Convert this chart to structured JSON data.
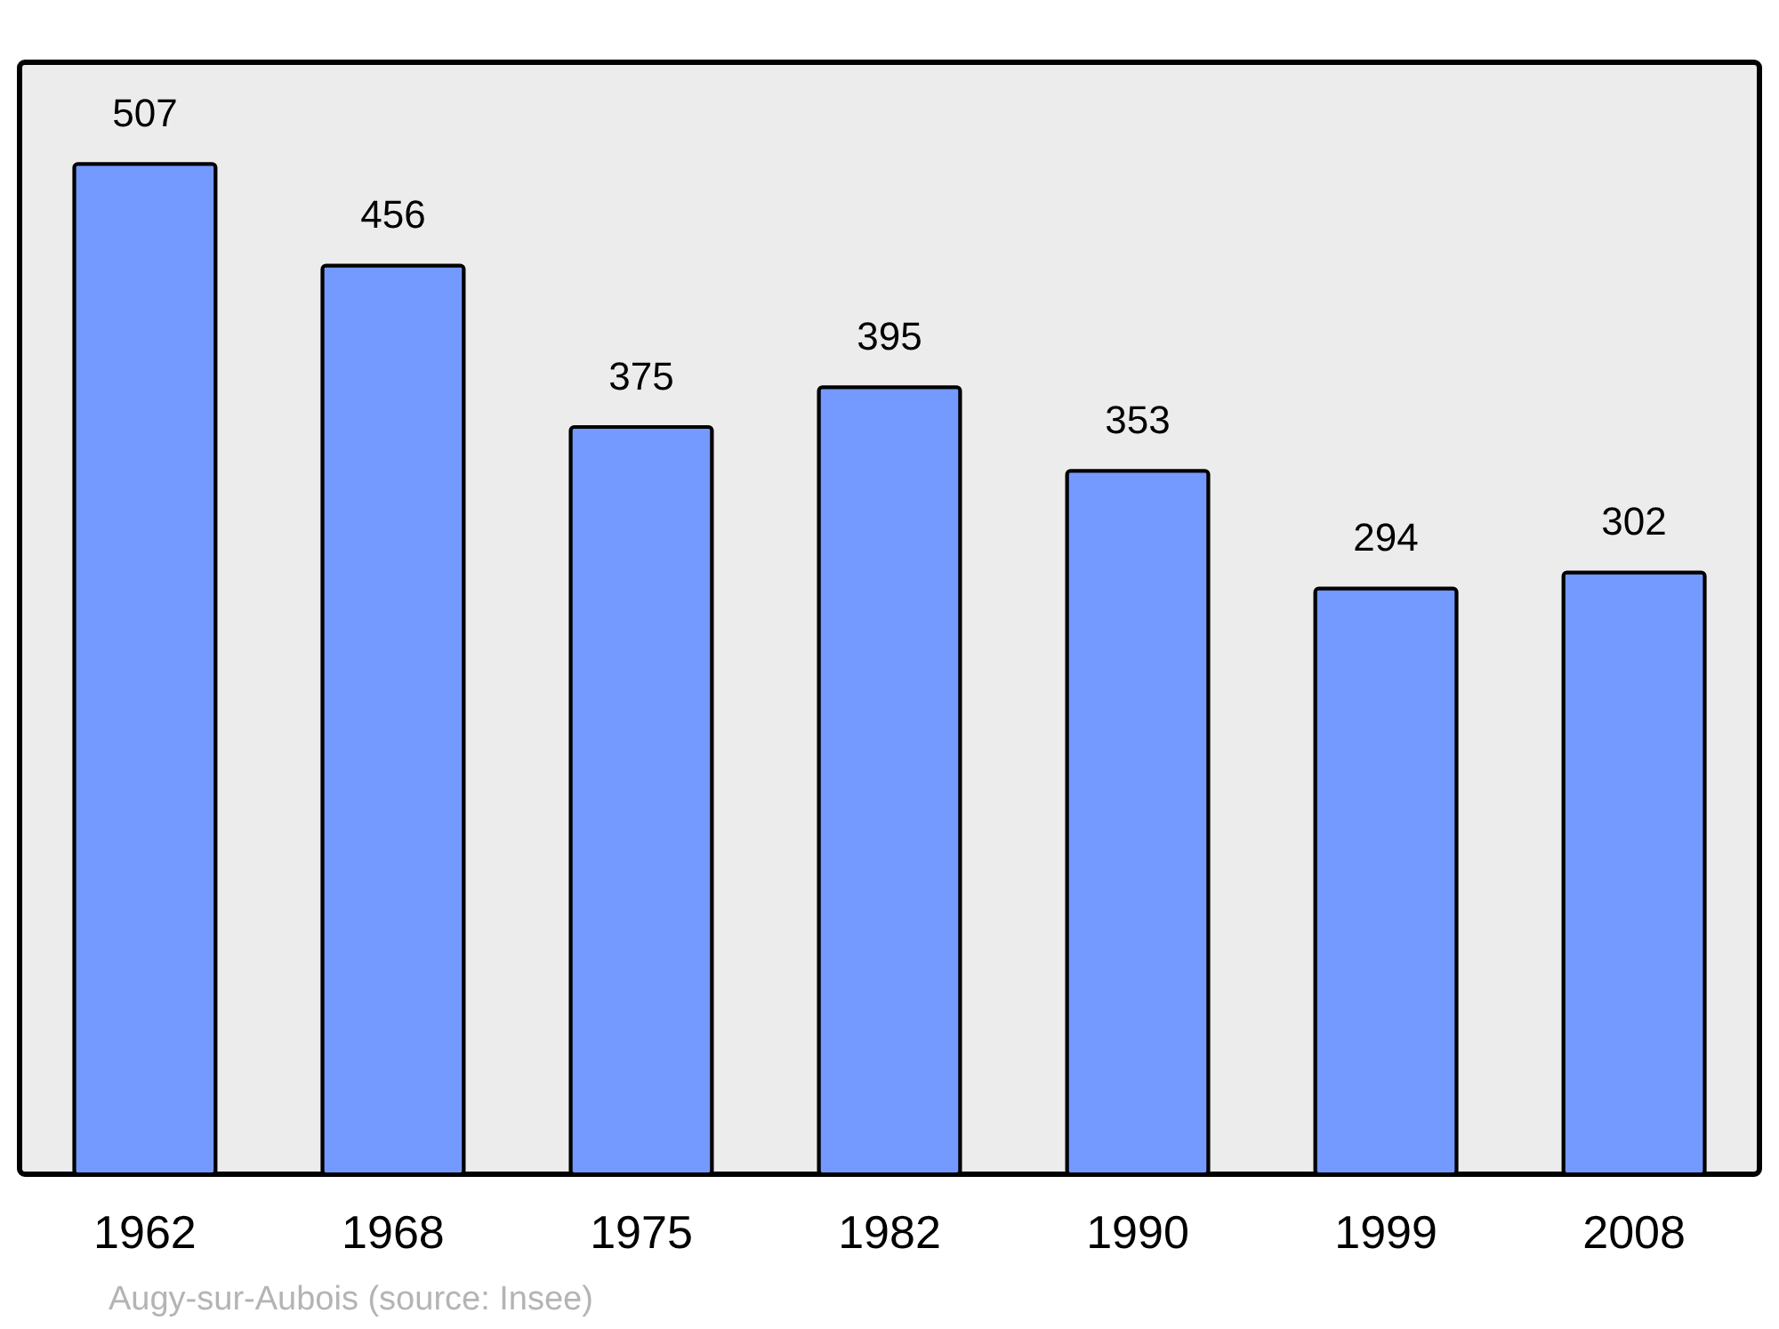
{
  "chart_data": {
    "type": "bar",
    "categories": [
      "1962",
      "1968",
      "1975",
      "1982",
      "1990",
      "1999",
      "2008"
    ],
    "values": [
      507,
      456,
      375,
      395,
      353,
      294,
      302
    ],
    "color": "#7499ff",
    "data_labels": true,
    "ylim": [
      0,
      558
    ],
    "grid": false,
    "annotations": [
      "Augy-sur-Aubois    (source: Insee)"
    ]
  }
}
